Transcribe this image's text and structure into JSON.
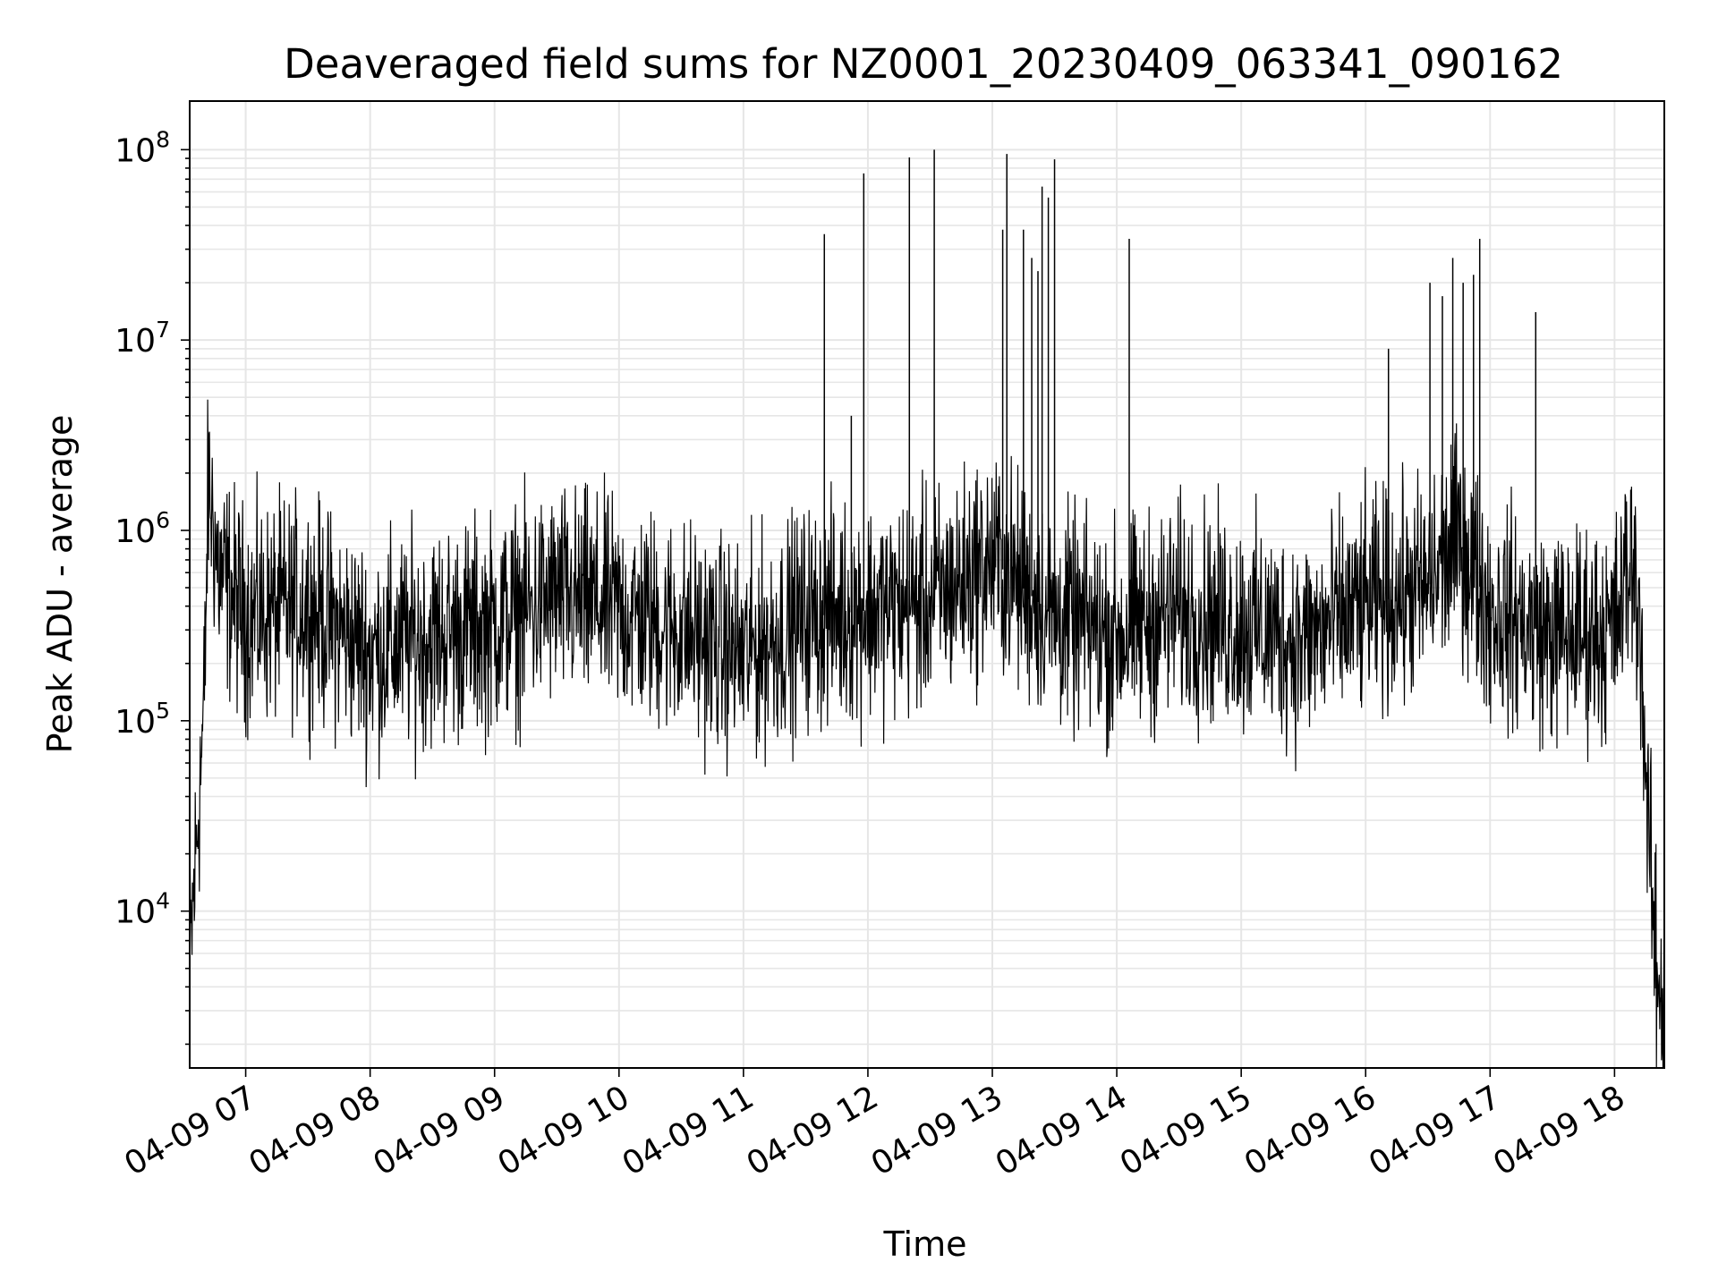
{
  "chart_data": {
    "type": "line",
    "title": "Deaveraged field sums for NZ0001_20230409_063341_090162",
    "xlabel": "Time",
    "ylabel": "Peak ADU - average",
    "yscale": "log",
    "ylim": [
      1500,
      180000000
    ],
    "xlim": [
      "2023-04-09 06:33",
      "2023-04-09 18:24"
    ],
    "grid": true,
    "x_ticks": [
      {
        "value": "2023-04-09 07:00",
        "label": "04-09 07"
      },
      {
        "value": "2023-04-09 08:00",
        "label": "04-09 08"
      },
      {
        "value": "2023-04-09 09:00",
        "label": "04-09 09"
      },
      {
        "value": "2023-04-09 10:00",
        "label": "04-09 10"
      },
      {
        "value": "2023-04-09 11:00",
        "label": "04-09 11"
      },
      {
        "value": "2023-04-09 12:00",
        "label": "04-09 12"
      },
      {
        "value": "2023-04-09 13:00",
        "label": "04-09 13"
      },
      {
        "value": "2023-04-09 14:00",
        "label": "04-09 14"
      },
      {
        "value": "2023-04-09 15:00",
        "label": "04-09 15"
      },
      {
        "value": "2023-04-09 16:00",
        "label": "04-09 16"
      },
      {
        "value": "2023-04-09 17:00",
        "label": "04-09 17"
      },
      {
        "value": "2023-04-09 18:00",
        "label": "04-09 18"
      }
    ],
    "y_ticks": [
      {
        "value": 10000,
        "base": "10",
        "exp": "4"
      },
      {
        "value": 100000,
        "base": "10",
        "exp": "5"
      },
      {
        "value": 1000000,
        "base": "10",
        "exp": "6"
      },
      {
        "value": 10000000,
        "base": "10",
        "exp": "7"
      },
      {
        "value": 100000000,
        "base": "10",
        "exp": "8"
      }
    ],
    "series": [
      {
        "color": "#000000",
        "baseline": [
          [
            "2023-04-09 06:33",
            5000
          ],
          [
            "2023-04-09 06:36",
            20000
          ],
          [
            "2023-04-09 06:40",
            120000
          ],
          [
            "2023-04-09 06:42",
            1800000
          ],
          [
            "2023-04-09 06:47",
            600000
          ],
          [
            "2023-04-09 07:00",
            350000
          ],
          [
            "2023-04-09 07:30",
            400000
          ],
          [
            "2023-04-09 08:00",
            230000
          ],
          [
            "2023-04-09 08:30",
            280000
          ],
          [
            "2023-04-09 09:00",
            320000
          ],
          [
            "2023-04-09 09:30",
            450000
          ],
          [
            "2023-04-09 10:00",
            380000
          ],
          [
            "2023-04-09 10:30",
            300000
          ],
          [
            "2023-04-09 11:00",
            220000
          ],
          [
            "2023-04-09 11:30",
            350000
          ],
          [
            "2023-04-09 12:00",
            380000
          ],
          [
            "2023-04-09 12:30",
            420000
          ],
          [
            "2023-04-09 13:00",
            700000
          ],
          [
            "2023-04-09 13:30",
            350000
          ],
          [
            "2023-04-09 14:00",
            280000
          ],
          [
            "2023-04-09 14:30",
            380000
          ],
          [
            "2023-04-09 15:00",
            320000
          ],
          [
            "2023-04-09 15:30",
            260000
          ],
          [
            "2023-04-09 16:00",
            400000
          ],
          [
            "2023-04-09 16:30",
            500000
          ],
          [
            "2023-04-09 16:45",
            900000
          ],
          [
            "2023-04-09 17:00",
            380000
          ],
          [
            "2023-04-09 17:30",
            280000
          ],
          [
            "2023-04-09 18:00",
            300000
          ],
          [
            "2023-04-09 18:08",
            700000
          ],
          [
            "2023-04-09 18:12",
            400000
          ],
          [
            "2023-04-09 18:16",
            30000
          ],
          [
            "2023-04-09 18:20",
            5000
          ],
          [
            "2023-04-09 18:24",
            3000
          ]
        ],
        "spikes": [
          [
            "2023-04-09 11:39",
            36000000
          ],
          [
            "2023-04-09 11:52",
            4000000
          ],
          [
            "2023-04-09 11:58",
            75000000
          ],
          [
            "2023-04-09 12:20",
            91000000
          ],
          [
            "2023-04-09 12:32",
            100000000
          ],
          [
            "2023-04-09 13:05",
            38000000
          ],
          [
            "2023-04-09 13:07",
            95000000
          ],
          [
            "2023-04-09 13:15",
            38000000
          ],
          [
            "2023-04-09 13:19",
            27000000
          ],
          [
            "2023-04-09 13:22",
            23000000
          ],
          [
            "2023-04-09 13:24",
            64000000
          ],
          [
            "2023-04-09 13:27",
            56000000
          ],
          [
            "2023-04-09 13:30",
            89000000
          ],
          [
            "2023-04-09 14:06",
            34000000
          ],
          [
            "2023-04-09 16:11",
            9000000
          ],
          [
            "2023-04-09 16:31",
            20000000
          ],
          [
            "2023-04-09 16:37",
            17000000
          ],
          [
            "2023-04-09 16:42",
            27000000
          ],
          [
            "2023-04-09 16:47",
            20000000
          ],
          [
            "2023-04-09 16:52",
            22000000
          ],
          [
            "2023-04-09 16:55",
            34000000
          ],
          [
            "2023-04-09 17:22",
            14000000
          ]
        ]
      }
    ]
  }
}
